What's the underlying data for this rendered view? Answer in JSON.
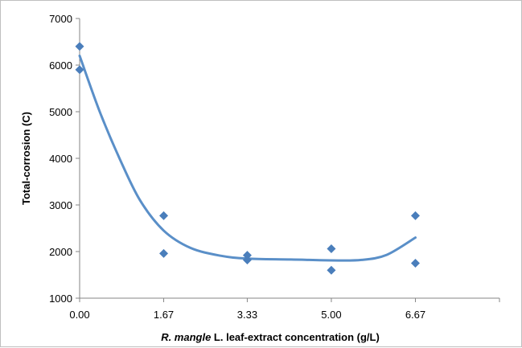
{
  "chart_data": {
    "type": "scatter",
    "title": "",
    "xlabel_italic": "R. mangle",
    "xlabel_rest": " L. leaf-extract concentration (g/L)",
    "ylabel": "Total-corrosion (C)",
    "x_categories": [
      "0.00",
      "1.67",
      "3.33",
      "5.00",
      "6.67"
    ],
    "x_range": [
      0,
      8.34
    ],
    "ylim": [
      1000,
      7000
    ],
    "y_ticks": [
      1000,
      2000,
      3000,
      4000,
      5000,
      6000,
      7000
    ],
    "grid": false,
    "legend": "none",
    "marker": "diamond",
    "color": "#4a7ebb",
    "trendline_color": "#5a8fc8",
    "points": [
      {
        "x": 0.0,
        "y": 6400
      },
      {
        "x": 0.0,
        "y": 5900
      },
      {
        "x": 1.67,
        "y": 2770
      },
      {
        "x": 1.67,
        "y": 1960
      },
      {
        "x": 3.33,
        "y": 1920
      },
      {
        "x": 3.33,
        "y": 1820
      },
      {
        "x": 5.0,
        "y": 2060
      },
      {
        "x": 5.0,
        "y": 1600
      },
      {
        "x": 6.67,
        "y": 2770
      },
      {
        "x": 6.67,
        "y": 1750
      }
    ],
    "trendline": [
      {
        "x": 0.0,
        "y": 6200
      },
      {
        "x": 0.4,
        "y": 5000
      },
      {
        "x": 0.8,
        "y": 3980
      },
      {
        "x": 1.2,
        "y": 3100
      },
      {
        "x": 1.67,
        "y": 2450
      },
      {
        "x": 2.2,
        "y": 2080
      },
      {
        "x": 2.8,
        "y": 1910
      },
      {
        "x": 3.33,
        "y": 1850
      },
      {
        "x": 4.2,
        "y": 1830
      },
      {
        "x": 5.0,
        "y": 1810
      },
      {
        "x": 5.6,
        "y": 1820
      },
      {
        "x": 6.1,
        "y": 1930
      },
      {
        "x": 6.67,
        "y": 2300
      }
    ]
  }
}
